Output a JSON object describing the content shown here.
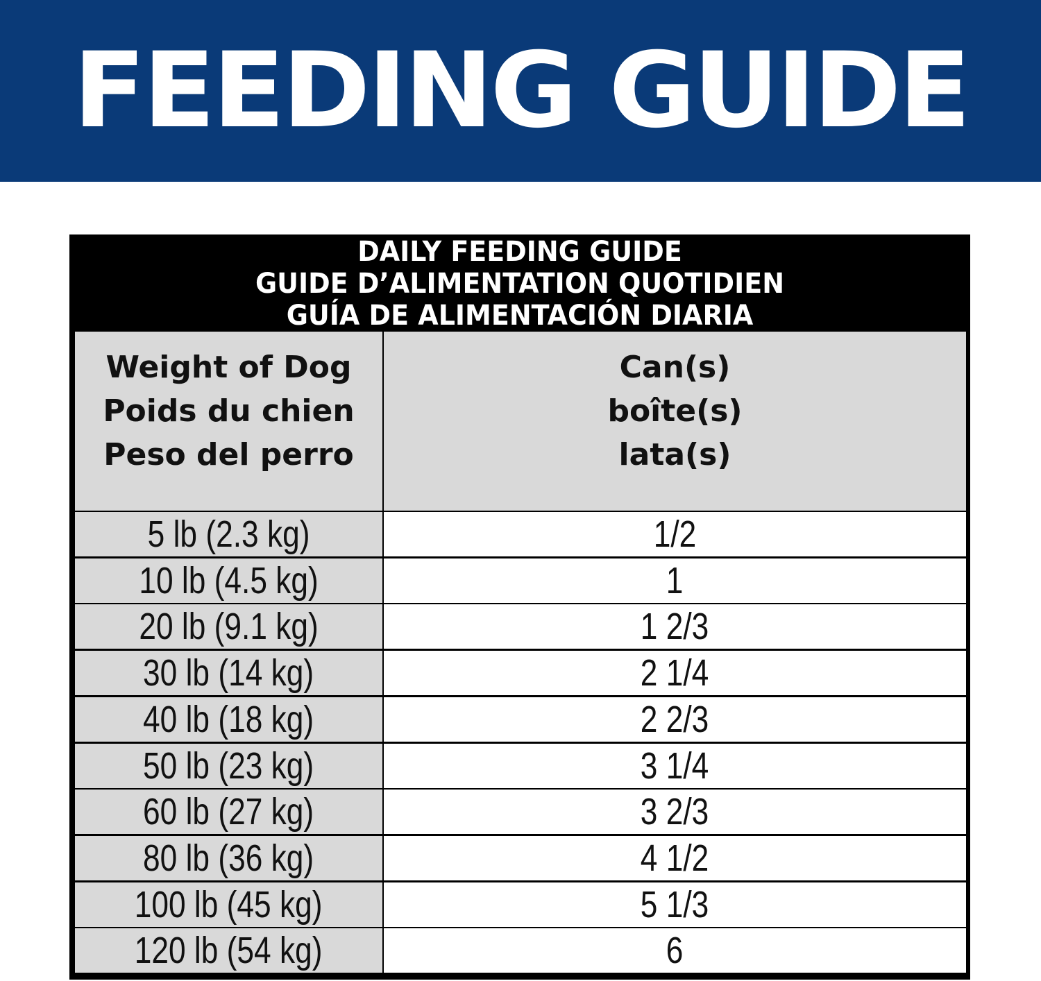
{
  "banner": {
    "title": "FEEDING GUIDE",
    "color": "#0a3a78"
  },
  "table": {
    "title_lines": [
      "DAILY FEEDING GUIDE",
      "GUIDE D’ALIMENTATION QUOTIDIEN",
      "GUÍA DE ALIMENTACIÓN DIARIA"
    ],
    "col_weight": [
      "Weight of Dog",
      "Poids du chien",
      "Peso del perro"
    ],
    "col_cans": [
      "Can(s)",
      "boîte(s)",
      "lata(s)"
    ],
    "rows": [
      {
        "weight": "5 lb (2.3 kg)",
        "cans": "1/2"
      },
      {
        "weight": "10 lb (4.5 kg)",
        "cans": "1"
      },
      {
        "weight": "20 lb (9.1 kg)",
        "cans": "1 2/3"
      },
      {
        "weight": "30 lb (14 kg)",
        "cans": "2 1/4"
      },
      {
        "weight": "40 lb (18 kg)",
        "cans": "2 2/3"
      },
      {
        "weight": "50 lb (23 kg)",
        "cans": "3 1/4"
      },
      {
        "weight": "60 lb (27 kg)",
        "cans": "3 2/3"
      },
      {
        "weight": "80 lb (36 kg)",
        "cans": "4 1/2"
      },
      {
        "weight": "100 lb (45 kg)",
        "cans": "5 1/3"
      },
      {
        "weight": "120 lb (54 kg)",
        "cans": "6"
      }
    ]
  }
}
